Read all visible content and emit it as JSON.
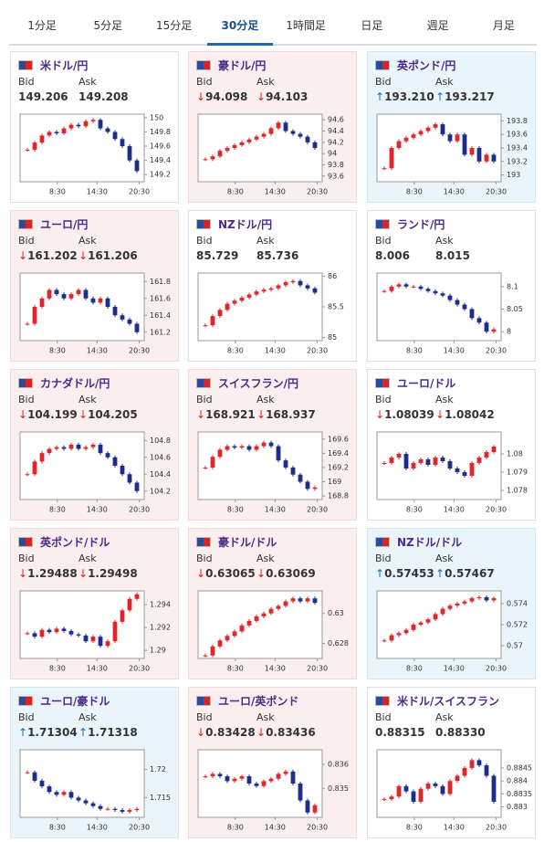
{
  "tabs": [
    "1分足",
    "5分足",
    "15分足",
    "30分足",
    "1時間足",
    "日足",
    "週足",
    "月足"
  ],
  "active_tab": 3,
  "bid_label": "Bid",
  "ask_label": "Ask",
  "x_labels": [
    "8:30",
    "14:30",
    "20:30"
  ],
  "cards": [
    {
      "pair": "米ドル/円",
      "bid": "149.206",
      "ask": "149.208",
      "chart": {
        "type": "candlestick",
        "ylim": [
          149.1,
          150.05
        ],
        "yticks": [
          150,
          149.8,
          149.6,
          149.4,
          149.2
        ],
        "values": [
          149.55,
          149.65,
          149.75,
          149.8,
          149.78,
          149.85,
          149.9,
          149.88,
          149.95,
          149.97,
          149.85,
          149.8,
          149.7,
          149.6,
          149.4,
          149.25
        ]
      }
    },
    {
      "pair": "豪ドル/円",
      "trend": "down",
      "arrow": "↓",
      "bid": "94.098",
      "ask": "94.103",
      "chart": {
        "type": "candlestick",
        "ylim": [
          93.5,
          94.7
        ],
        "yticks": [
          94.6,
          94.4,
          94.2,
          94,
          93.8,
          93.6
        ],
        "values": [
          93.9,
          93.95,
          94.05,
          94.1,
          94.15,
          94.2,
          94.25,
          94.3,
          94.35,
          94.45,
          94.55,
          94.4,
          94.35,
          94.3,
          94.2,
          94.1
        ]
      }
    },
    {
      "pair": "英ポンド/円",
      "trend": "up",
      "arrow": "↑",
      "bid": "193.210",
      "ask": "193.217",
      "chart": {
        "type": "candlestick",
        "ylim": [
          192.9,
          193.9
        ],
        "yticks": [
          193.8,
          193.6,
          193.4,
          193.2,
          193
        ],
        "values": [
          193.1,
          193.4,
          193.5,
          193.55,
          193.6,
          193.65,
          193.7,
          193.75,
          193.6,
          193.5,
          193.6,
          193.3,
          193.4,
          193.2,
          193.3,
          193.2
        ]
      }
    },
    {
      "pair": "ユーロ/円",
      "trend": "down",
      "arrow": "↓",
      "bid": "161.202",
      "ask": "161.206",
      "chart": {
        "type": "candlestick",
        "ylim": [
          161.1,
          161.9
        ],
        "yticks": [
          161.8,
          161.6,
          161.4,
          161.2
        ],
        "values": [
          161.3,
          161.5,
          161.6,
          161.7,
          161.65,
          161.6,
          161.65,
          161.7,
          161.6,
          161.55,
          161.6,
          161.5,
          161.4,
          161.35,
          161.3,
          161.2
        ]
      }
    },
    {
      "pair": "NZドル/円",
      "bid": "85.729",
      "ask": "85.736",
      "chart": {
        "type": "candlestick",
        "ylim": [
          84.95,
          86.05
        ],
        "yticks": [
          86,
          85.5,
          85
        ],
        "values": [
          85.2,
          85.35,
          85.45,
          85.55,
          85.6,
          85.65,
          85.7,
          85.75,
          85.78,
          85.8,
          85.85,
          85.9,
          85.92,
          85.85,
          85.8,
          85.73
        ]
      }
    },
    {
      "pair": "ランド/円",
      "bid": "8.006",
      "ask": "8.015",
      "chart": {
        "type": "candlestick",
        "ylim": [
          7.98,
          8.13
        ],
        "yticks": [
          8.1,
          8.05,
          8
        ],
        "values": [
          8.09,
          8.1,
          8.105,
          8.1,
          8.1,
          8.095,
          8.09,
          8.085,
          8.08,
          8.07,
          8.06,
          8.05,
          8.03,
          8.02,
          8.0,
          8.005
        ]
      }
    },
    {
      "pair": "カナダドル/円",
      "trend": "down",
      "arrow": "↓",
      "bid": "104.199",
      "ask": "104.205",
      "chart": {
        "type": "candlestick",
        "ylim": [
          104.1,
          104.9
        ],
        "yticks": [
          104.8,
          104.6,
          104.4,
          104.2
        ],
        "values": [
          104.4,
          104.55,
          104.65,
          104.7,
          104.72,
          104.7,
          104.75,
          104.7,
          104.72,
          104.75,
          104.65,
          104.6,
          104.5,
          104.4,
          104.3,
          104.2
        ]
      }
    },
    {
      "pair": "スイスフラン/円",
      "trend": "down",
      "arrow": "↓",
      "bid": "168.921",
      "ask": "168.937",
      "chart": {
        "type": "candlestick",
        "ylim": [
          168.75,
          169.7
        ],
        "yticks": [
          169.6,
          169.4,
          169.2,
          169,
          168.8
        ],
        "values": [
          169.2,
          169.35,
          169.45,
          169.5,
          169.48,
          169.5,
          169.45,
          169.5,
          169.55,
          169.5,
          169.3,
          169.2,
          169.1,
          169.0,
          168.9,
          168.92
        ]
      }
    },
    {
      "pair": "ユーロ/ドル",
      "bid": "1.08039",
      "ask": "1.08042",
      "arrow": "↓",
      "trend": "none",
      "chart": {
        "type": "candlestick",
        "ylim": [
          1.0775,
          1.0812
        ],
        "yticks": [
          1.08,
          1.079,
          1.078
        ],
        "values": [
          1.0795,
          1.0798,
          1.08,
          1.0792,
          1.0795,
          1.0797,
          1.0794,
          1.0798,
          1.0796,
          1.0792,
          1.079,
          1.0788,
          1.0795,
          1.0798,
          1.0801,
          1.0804
        ]
      }
    },
    {
      "pair": "英ポンド/ドル",
      "trend": "down",
      "arrow": "↓",
      "bid": "1.29488",
      "ask": "1.29498",
      "chart": {
        "type": "candlestick",
        "ylim": [
          1.2893,
          1.2952
        ],
        "yticks": [
          1.294,
          1.292,
          1.29
        ],
        "values": [
          1.2915,
          1.2912,
          1.2918,
          1.2916,
          1.2919,
          1.2917,
          1.2914,
          1.2913,
          1.2908,
          1.2912,
          1.2904,
          1.2908,
          1.2925,
          1.2935,
          1.2945,
          1.2949
        ]
      }
    },
    {
      "pair": "豪ドル/ドル",
      "trend": "down",
      "arrow": "↓",
      "bid": "0.63065",
      "ask": "0.63069",
      "chart": {
        "type": "candlestick",
        "ylim": [
          0.627,
          0.6315
        ],
        "yticks": [
          0.63,
          0.628
        ],
        "values": [
          0.6272,
          0.6278,
          0.6282,
          0.6285,
          0.6288,
          0.6292,
          0.6295,
          0.6298,
          0.63,
          0.6303,
          0.6305,
          0.6308,
          0.631,
          0.6308,
          0.631,
          0.6307
        ]
      }
    },
    {
      "pair": "NZドル/ドル",
      "trend": "up",
      "arrow": "↑",
      "bid": "0.57453",
      "ask": "0.57467",
      "chart": {
        "type": "candlestick",
        "ylim": [
          0.5688,
          0.5752
        ],
        "yticks": [
          0.574,
          0.572,
          0.57
        ],
        "values": [
          0.5705,
          0.571,
          0.5712,
          0.5715,
          0.572,
          0.5722,
          0.5725,
          0.573,
          0.5735,
          0.5738,
          0.574,
          0.5742,
          0.5745,
          0.5746,
          0.5743,
          0.5745
        ]
      }
    },
    {
      "pair": "ユーロ/豪ドル",
      "trend": "up",
      "arrow": "↑",
      "bid": "1.71304",
      "ask": "1.71318",
      "chart": {
        "type": "candlestick",
        "ylim": [
          1.7115,
          1.7235
        ],
        "yticks": [
          1.72,
          1.715
        ],
        "values": [
          1.7195,
          1.718,
          1.717,
          1.716,
          1.7155,
          1.716,
          1.715,
          1.7145,
          1.714,
          1.7135,
          1.713,
          1.713,
          1.7128,
          1.7125,
          1.7128,
          1.713
        ]
      }
    },
    {
      "pair": "ユーロ/英ポンド",
      "trend": "down",
      "arrow": "↓",
      "bid": "0.83428",
      "ask": "0.83436",
      "chart": {
        "type": "candlestick",
        "ylim": [
          0.8338,
          0.8366
        ],
        "yticks": [
          0.836,
          0.835
        ],
        "values": [
          0.8355,
          0.8356,
          0.8355,
          0.8353,
          0.8354,
          0.8355,
          0.8352,
          0.8351,
          0.8353,
          0.8354,
          0.8356,
          0.8357,
          0.8352,
          0.8345,
          0.834,
          0.8343
        ]
      }
    },
    {
      "pair": "米ドル/スイスフラン",
      "bid": "0.88315",
      "ask": "0.88330",
      "chart": {
        "type": "candlestick",
        "ylim": [
          0.8826,
          0.8852
        ],
        "yticks": [
          0.8845,
          0.884,
          0.8835,
          0.883
        ],
        "values": [
          0.8833,
          0.8834,
          0.8838,
          0.8836,
          0.8832,
          0.8837,
          0.8839,
          0.8838,
          0.8835,
          0.884,
          0.8842,
          0.8845,
          0.8848,
          0.8846,
          0.8842,
          0.8832
        ]
      }
    }
  ]
}
